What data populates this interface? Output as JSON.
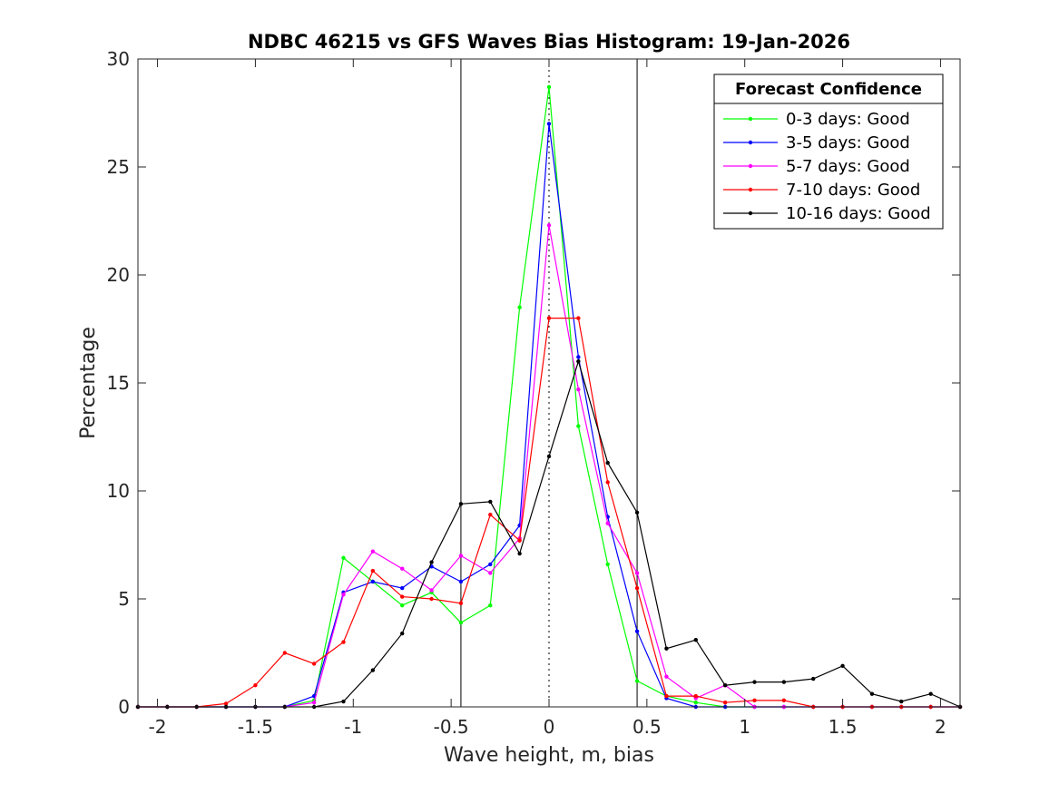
{
  "chart_data": {
    "type": "line",
    "title": "NDBC 46215 vs GFS Waves Bias Histogram: 19-Jan-2026",
    "xlabel": "Wave height, m, bias",
    "ylabel": "Percentage",
    "xlim": [
      -2.1,
      2.1
    ],
    "ylim": [
      0,
      30
    ],
    "xticks": [
      -2,
      -1.5,
      -1,
      -0.5,
      0,
      0.5,
      1,
      1.5,
      2
    ],
    "xtick_labels": [
      "-2",
      "-1.5",
      "-1",
      "-0.5",
      "0",
      "0.5",
      "1",
      "1.5",
      "2"
    ],
    "yticks": [
      0,
      5,
      10,
      15,
      20,
      25,
      30
    ],
    "ytick_labels": [
      "0",
      "5",
      "10",
      "15",
      "20",
      "25",
      "30"
    ],
    "vertical_lines": [
      {
        "x": -0.45,
        "style": "solid"
      },
      {
        "x": 0.45,
        "style": "solid"
      },
      {
        "x": 0,
        "style": "dotted"
      }
    ],
    "legend_title": "Forecast Confidence",
    "legend_position": "top-right",
    "x": [
      -2.1,
      -1.95,
      -1.8,
      -1.65,
      -1.5,
      -1.35,
      -1.2,
      -1.05,
      -0.9,
      -0.75,
      -0.6,
      -0.45,
      -0.3,
      -0.15,
      0,
      0.15,
      0.3,
      0.45,
      0.6,
      0.75,
      0.9,
      1.05,
      1.2,
      1.35,
      1.5,
      1.65,
      1.8,
      1.95,
      2.1
    ],
    "series": [
      {
        "name": "0-3 days: Good",
        "color": "#00ff00",
        "values": [
          0,
          0,
          0,
          0,
          0,
          0,
          0.3,
          6.9,
          5.8,
          4.7,
          5.3,
          3.9,
          4.7,
          18.5,
          28.7,
          13.0,
          6.6,
          1.2,
          0.5,
          0.2,
          0,
          0,
          0,
          0,
          0,
          0,
          0,
          0,
          0
        ]
      },
      {
        "name": "3-5 days: Good",
        "color": "#0000ff",
        "values": [
          0,
          0,
          0,
          0,
          0,
          0,
          0.5,
          5.3,
          5.8,
          5.5,
          6.5,
          5.8,
          6.6,
          8.4,
          27.0,
          16.2,
          8.8,
          3.5,
          0.4,
          0,
          0,
          0,
          0,
          0,
          0,
          0,
          0,
          0,
          0
        ]
      },
      {
        "name": "5-7 days: Good",
        "color": "#ff00ff",
        "values": [
          0,
          0,
          0,
          0,
          0,
          0,
          0.2,
          5.2,
          7.2,
          6.4,
          5.4,
          7.0,
          6.2,
          7.8,
          22.3,
          14.7,
          8.5,
          6.2,
          1.4,
          0.4,
          1.0,
          0,
          0,
          0,
          0,
          0,
          0,
          0,
          0
        ]
      },
      {
        "name": "7-10 days: Good",
        "color": "#ff0000",
        "values": [
          0,
          0,
          0,
          0.15,
          1.0,
          2.5,
          2.0,
          3.0,
          6.3,
          5.1,
          5.0,
          4.8,
          8.9,
          7.7,
          18.0,
          18.0,
          10.4,
          5.5,
          0.5,
          0.5,
          0.2,
          0.3,
          0.3,
          0,
          0,
          0,
          0,
          0,
          0
        ]
      },
      {
        "name": "10-16 days: Good",
        "color": "#000000",
        "values": [
          0,
          0,
          0,
          0,
          0,
          0,
          0,
          0.25,
          1.7,
          3.4,
          6.7,
          9.4,
          9.5,
          7.1,
          11.6,
          16.0,
          11.3,
          9.0,
          2.7,
          3.1,
          1.0,
          1.15,
          1.15,
          1.3,
          1.9,
          0.6,
          0.25,
          0.6,
          0
        ]
      }
    ]
  }
}
